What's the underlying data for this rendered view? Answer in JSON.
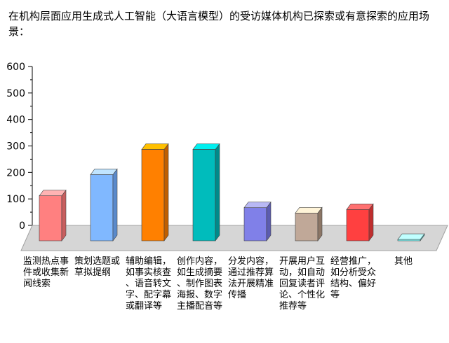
{
  "title": "在机构层面应用生成式人工智能（大语言模型）的受访媒体机构已探索或有意探索的应用场景：",
  "chart_data": {
    "type": "bar",
    "title": "在机构层面应用生成式人工智能（大语言模型）的受访媒体机构已探索或有意探索的应用场景：",
    "xlabel": "",
    "ylabel": "",
    "ylim": [
      0,
      600
    ],
    "yticks": [
      0,
      100,
      200,
      300,
      400,
      500,
      600
    ],
    "grid": false,
    "legend": "none",
    "style": "3d-bars",
    "categories": [
      "监测热点事件或收集新闻线索",
      "策划选题或草拟提纲",
      "辅助编辑，如事实核查、语音转文字、配字幕或翻译等",
      "创作内容，如生成摘要、制作图表海报、数字主播配音等",
      "分发内容，通过推荐算法开展精准传播",
      "开展用户互动，如自动回复读者评论、个性化推荐等",
      "经营推广，如分析受众结构、偏好等",
      "其他"
    ],
    "category_lines": [
      [
        "监测热点事",
        "件或收集新",
        "闻线索"
      ],
      [
        "策划选题或",
        "草拟提纲"
      ],
      [
        "辅助编辑，",
        "如事实核查",
        "、语音转文",
        "字、配字幕",
        "或翻译等"
      ],
      [
        "创作内容，",
        "如生成摘要",
        "、制作图表",
        "海报、数字",
        "主播配音等"
      ],
      [
        "分发内容，",
        "通过推荐算",
        "法开展精准",
        "传播"
      ],
      [
        "开展用户互",
        "动，如自动",
        "回复读者评",
        "论、个性化",
        "推荐等"
      ],
      [
        "经营推广，",
        "如分析受众",
        "结构、偏好",
        "等"
      ],
      [
        "其他"
      ]
    ],
    "values": [
      170,
      250,
      345,
      345,
      125,
      105,
      118,
      5
    ],
    "colors": [
      {
        "front": "#ff8080",
        "side": "#c85e5e",
        "top": "#ffb3b3"
      },
      {
        "front": "#80b8ff",
        "side": "#5a8acb",
        "top": "#c0e4ff"
      },
      {
        "front": "#ff8000",
        "side": "#c05f00",
        "top": "#ffc000"
      },
      {
        "front": "#00bcbc",
        "side": "#008a8a",
        "top": "#00f0f0"
      },
      {
        "front": "#8080e8",
        "side": "#5c5cb0",
        "top": "#b8b8f4"
      },
      {
        "front": "#c0a898",
        "side": "#8c7666",
        "top": "#fff4d8"
      },
      {
        "front": "#ff4040",
        "side": "#bf2e2e",
        "top": "#ff7070"
      },
      {
        "front": "#80ffff",
        "side": "#50c8c8",
        "top": "#c0ffff"
      }
    ]
  }
}
